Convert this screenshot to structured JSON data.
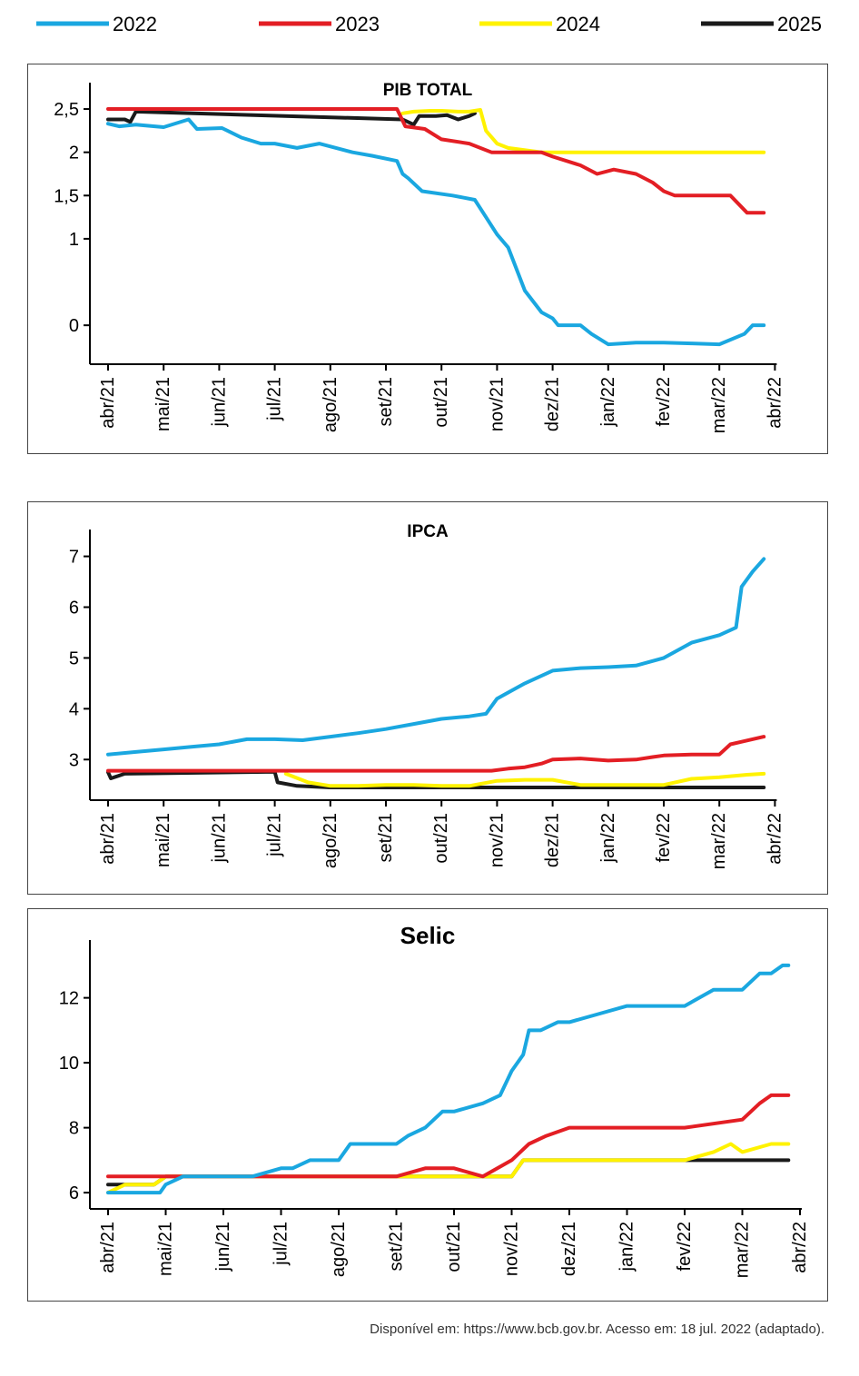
{
  "legend": [
    {
      "name": "2022",
      "color": "#1aa7e0"
    },
    {
      "name": "2023",
      "color": "#e31e24"
    },
    {
      "name": "2024",
      "color": "#fff200"
    },
    {
      "name": "2025",
      "color": "#1a1a1a"
    }
  ],
  "source": "Disponível em: https://www.bcb.gov.br. Acesso em: 18 jul. 2022 (adaptado).",
  "chart_data": [
    {
      "type": "line",
      "title": "PIB TOTAL",
      "xlabel": "",
      "ylabel": "",
      "x_ticks": [
        "abr/21",
        "mai/21",
        "jun/21",
        "jul/21",
        "ago/21",
        "set/21",
        "out/21",
        "nov/21",
        "dez/21",
        "jan/22",
        "fev/22",
        "mar/22",
        "abr/22"
      ],
      "y_ticks": [
        "0",
        "1",
        "1,5",
        "2",
        "2,5"
      ],
      "y_tick_values": [
        0,
        1,
        1.5,
        2,
        2.5
      ],
      "ylim": [
        -0.45,
        2.7
      ],
      "grid": false,
      "series": [
        {
          "name": "2022",
          "x": [
            0.0,
            0.2,
            0.5,
            1.0,
            1.45,
            1.6,
            2.05,
            2.4,
            2.75,
            3.0,
            3.4,
            3.8,
            4.4,
            4.75,
            5.2,
            5.3,
            5.4,
            5.65,
            6.2,
            6.6,
            6.8,
            7.0,
            7.2,
            7.5,
            7.8,
            8.0,
            8.1,
            8.5,
            8.7,
            9.0,
            9.5,
            10.0,
            10.5,
            11.0,
            11.45,
            11.6,
            11.8
          ],
          "y": [
            2.33,
            2.3,
            2.32,
            2.29,
            2.38,
            2.27,
            2.28,
            2.17,
            2.1,
            2.1,
            2.05,
            2.1,
            2.0,
            1.96,
            1.9,
            1.75,
            1.7,
            1.55,
            1.5,
            1.45,
            1.25,
            1.05,
            0.9,
            0.4,
            0.15,
            0.08,
            0.0,
            0.0,
            -0.1,
            -0.22,
            -0.2,
            -0.2,
            -0.21,
            -0.22,
            -0.1,
            0.0,
            0.0
          ]
        },
        {
          "name": "2023",
          "x": [
            0.0,
            5.2,
            5.35,
            5.7,
            6.0,
            6.5,
            6.9,
            7.3,
            7.8,
            8.0,
            8.5,
            8.8,
            9.1,
            9.5,
            9.8,
            10.0,
            10.2,
            10.5,
            11.0,
            11.2,
            11.5,
            11.8
          ],
          "y": [
            2.5,
            2.5,
            2.3,
            2.27,
            2.15,
            2.1,
            2.0,
            2.0,
            2.0,
            1.95,
            1.85,
            1.75,
            1.8,
            1.75,
            1.65,
            1.55,
            1.5,
            1.5,
            1.5,
            1.5,
            1.3,
            1.3
          ]
        },
        {
          "name": "2024",
          "x": [
            5.3,
            5.5,
            5.8,
            6.0,
            6.3,
            6.5,
            6.7,
            6.8,
            7.0,
            7.2,
            7.8,
            8.0,
            8.5,
            9.0,
            9.5,
            10.0,
            11.0,
            11.8
          ],
          "y": [
            2.45,
            2.47,
            2.48,
            2.48,
            2.47,
            2.47,
            2.49,
            2.25,
            2.1,
            2.05,
            2.0,
            2.0,
            2.0,
            2.0,
            2.0,
            2.0,
            2.0,
            2.0
          ]
        },
        {
          "name": "2025",
          "x": [
            0.0,
            0.3,
            0.4,
            0.5,
            5.3,
            5.5,
            5.6,
            5.9,
            6.1,
            6.3,
            6.5,
            6.6
          ],
          "y": [
            2.38,
            2.38,
            2.35,
            2.47,
            2.38,
            2.32,
            2.42,
            2.42,
            2.43,
            2.38,
            2.42,
            2.45
          ]
        }
      ]
    },
    {
      "type": "line",
      "title": "IPCA",
      "xlabel": "",
      "ylabel": "",
      "x_ticks": [
        "abr/21",
        "mai/21",
        "jun/21",
        "jul/21",
        "ago/21",
        "set/21",
        "out/21",
        "nov/21",
        "dez/21",
        "jan/22",
        "fev/22",
        "mar/22",
        "abr/22"
      ],
      "y_ticks": [
        "3",
        "4",
        "5",
        "6",
        "7"
      ],
      "y_tick_values": [
        3,
        4,
        5,
        6,
        7
      ],
      "ylim": [
        2.2,
        7.35
      ],
      "grid": false,
      "series": [
        {
          "name": "2022",
          "x": [
            0.0,
            0.5,
            1.0,
            1.5,
            2.0,
            2.5,
            3.0,
            3.5,
            4.0,
            4.5,
            5.0,
            5.5,
            6.0,
            6.5,
            6.8,
            7.0,
            7.5,
            8.0,
            8.5,
            9.0,
            9.5,
            10.0,
            10.5,
            11.0,
            11.3,
            11.4,
            11.6,
            11.8
          ],
          "y": [
            3.1,
            3.15,
            3.2,
            3.25,
            3.3,
            3.4,
            3.4,
            3.38,
            3.45,
            3.52,
            3.6,
            3.7,
            3.8,
            3.85,
            3.9,
            4.2,
            4.5,
            4.75,
            4.8,
            4.82,
            4.85,
            5.0,
            5.3,
            5.45,
            5.6,
            6.4,
            6.7,
            6.95
          ]
        },
        {
          "name": "2023",
          "x": [
            0.0,
            2.0,
            4.0,
            6.0,
            6.9,
            7.2,
            7.5,
            7.8,
            8.0,
            8.5,
            9.0,
            9.5,
            9.8,
            10.0,
            10.5,
            11.0,
            11.2,
            11.4,
            11.8
          ],
          "y": [
            2.78,
            2.78,
            2.78,
            2.78,
            2.78,
            2.82,
            2.85,
            2.92,
            3.0,
            3.02,
            2.98,
            3.0,
            3.05,
            3.08,
            3.1,
            3.1,
            3.3,
            3.35,
            3.45
          ]
        },
        {
          "name": "2024",
          "x": [
            3.2,
            3.6,
            4.0,
            4.5,
            5.0,
            5.5,
            6.0,
            6.5,
            7.0,
            7.5,
            8.0,
            8.5,
            9.0,
            9.5,
            10.0,
            10.5,
            11.0,
            11.5,
            11.8
          ],
          "y": [
            2.72,
            2.55,
            2.48,
            2.48,
            2.5,
            2.5,
            2.48,
            2.48,
            2.58,
            2.6,
            2.6,
            2.5,
            2.5,
            2.5,
            2.5,
            2.62,
            2.65,
            2.7,
            2.72
          ]
        },
        {
          "name": "2025",
          "x": [
            0.0,
            0.05,
            0.3,
            3.0,
            3.05,
            3.4,
            4.0,
            6.0,
            8.0,
            10.0,
            11.8
          ],
          "y": [
            2.75,
            2.63,
            2.72,
            2.76,
            2.55,
            2.48,
            2.45,
            2.45,
            2.45,
            2.45,
            2.45
          ]
        }
      ]
    },
    {
      "type": "line",
      "title": "Selic",
      "xlabel": "",
      "ylabel": "",
      "x_ticks": [
        "abr/21",
        "mai/21",
        "jun/21",
        "jul/21",
        "ago/21",
        "set/21",
        "out/21",
        "nov/21",
        "dez/21",
        "jan/22",
        "fev/22",
        "mar/22",
        "abr/22"
      ],
      "y_ticks": [
        "6",
        "8",
        "10",
        "12"
      ],
      "y_tick_values": [
        6,
        8,
        10,
        12
      ],
      "ylim": [
        5.5,
        13.5
      ],
      "grid": false,
      "series": [
        {
          "name": "2022",
          "x": [
            0.0,
            0.9,
            1.0,
            1.3,
            2.0,
            2.5,
            3.0,
            3.2,
            3.5,
            4.0,
            4.2,
            4.5,
            5.0,
            5.2,
            5.5,
            5.8,
            6.0,
            6.5,
            6.8,
            7.0,
            7.2,
            7.3,
            7.5,
            7.8,
            8.0,
            8.5,
            9.0,
            9.5,
            10.0,
            10.5,
            11.0,
            11.3,
            11.5,
            11.7,
            11.8
          ],
          "y": [
            6.0,
            6.0,
            6.25,
            6.5,
            6.5,
            6.5,
            6.75,
            6.75,
            7.0,
            7.0,
            7.5,
            7.5,
            7.5,
            7.75,
            8.0,
            8.5,
            8.5,
            8.75,
            9.0,
            9.75,
            10.25,
            11.0,
            11.0,
            11.25,
            11.25,
            11.5,
            11.75,
            11.75,
            11.75,
            12.25,
            12.25,
            12.75,
            12.75,
            13.0,
            13.0
          ]
        },
        {
          "name": "2023",
          "x": [
            0.0,
            1.0,
            2.0,
            3.0,
            4.0,
            5.0,
            5.5,
            6.0,
            6.5,
            7.0,
            7.3,
            7.6,
            8.0,
            9.0,
            10.0,
            11.0,
            11.3,
            11.5,
            11.8
          ],
          "y": [
            6.5,
            6.5,
            6.5,
            6.5,
            6.5,
            6.5,
            6.75,
            6.75,
            6.5,
            7.0,
            7.5,
            7.75,
            8.0,
            8.0,
            8.0,
            8.25,
            8.75,
            9.0,
            9.0
          ]
        },
        {
          "name": "2024",
          "x": [
            0.0,
            0.3,
            0.6,
            0.8,
            1.0,
            5.5,
            6.0,
            6.5,
            7.0,
            7.2,
            7.5,
            8.0,
            8.5,
            9.0,
            10.0,
            10.5,
            10.8,
            11.0,
            11.5,
            11.8
          ],
          "y": [
            6.0,
            6.25,
            6.25,
            6.25,
            6.5,
            6.5,
            6.5,
            6.5,
            6.5,
            7.0,
            7.0,
            7.0,
            7.0,
            7.0,
            7.0,
            7.25,
            7.5,
            7.25,
            7.5,
            7.5
          ]
        },
        {
          "name": "2025",
          "x": [
            0.0,
            0.5,
            0.8,
            1.0,
            6.0,
            7.0,
            7.2,
            8.0,
            9.0,
            10.0,
            11.0,
            11.8
          ],
          "y": [
            6.25,
            6.25,
            6.25,
            6.5,
            6.5,
            6.5,
            7.0,
            7.0,
            7.0,
            7.0,
            7.0,
            7.0
          ]
        }
      ]
    }
  ]
}
